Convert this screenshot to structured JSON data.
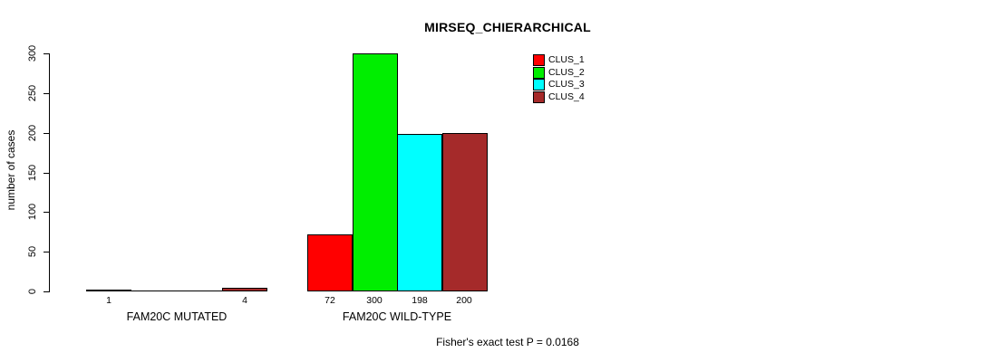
{
  "title": "MIRSEQ_CHIERARCHICAL",
  "footer": "Fisher's exact test P = 0.0168",
  "chart_data": {
    "type": "bar",
    "title": "MIRSEQ_CHIERARCHICAL",
    "ylabel": "number of cases",
    "xlabel": "",
    "ylim": [
      0,
      300
    ],
    "yticks": [
      0,
      50,
      100,
      150,
      200,
      250,
      300
    ],
    "grid": false,
    "legend_position": "top-right",
    "categories": [
      "FAM20C MUTATED",
      "FAM20C WILD-TYPE"
    ],
    "series": [
      {
        "name": "CLUS_1",
        "color": "#FF0000",
        "values": [
          1,
          72
        ]
      },
      {
        "name": "CLUS_2",
        "color": "#00EE00",
        "values": [
          0,
          300
        ]
      },
      {
        "name": "CLUS_3",
        "color": "#00FFFF",
        "values": [
          0,
          198
        ]
      },
      {
        "name": "CLUS_4",
        "color": "#A52A2A",
        "values": [
          4,
          200
        ]
      }
    ],
    "bar_labels": [
      [
        "1",
        "",
        "",
        "4"
      ],
      [
        "72",
        "300",
        "198",
        "200"
      ]
    ],
    "annotation": "Fisher's exact test P = 0.0168"
  }
}
